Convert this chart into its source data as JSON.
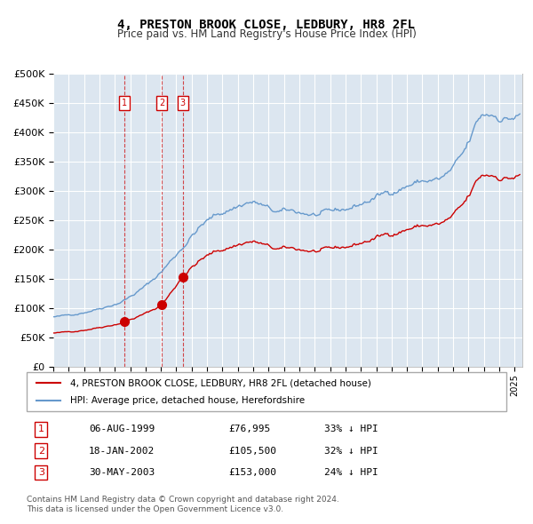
{
  "title": "4, PRESTON BROOK CLOSE, LEDBURY, HR8 2FL",
  "subtitle": "Price paid vs. HM Land Registry's House Price Index (HPI)",
  "legend_line1": "4, PRESTON BROOK CLOSE, LEDBURY, HR8 2FL (detached house)",
  "legend_line2": "HPI: Average price, detached house, Herefordshire",
  "footer1": "Contains HM Land Registry data © Crown copyright and database right 2024.",
  "footer2": "This data is licensed under the Open Government Licence v3.0.",
  "transactions": [
    {
      "num": 1,
      "date": "06-AUG-1999",
      "price": 76995,
      "hpi_diff": "33% ↓ HPI"
    },
    {
      "num": 2,
      "date": "18-JAN-2002",
      "price": 105500,
      "hpi_diff": "32% ↓ HPI"
    },
    {
      "num": 3,
      "date": "30-MAY-2003",
      "price": 153000,
      "hpi_diff": "24% ↓ HPI"
    }
  ],
  "transaction_dates_decimal": [
    1999.597,
    2002.046,
    2003.413
  ],
  "red_line_color": "#cc0000",
  "blue_line_color": "#6699cc",
  "background_color": "#dce6f0",
  "grid_color": "#ffffff",
  "ylim": [
    0,
    500000
  ],
  "xlim_start": 1995.0,
  "xlim_end": 2025.5
}
